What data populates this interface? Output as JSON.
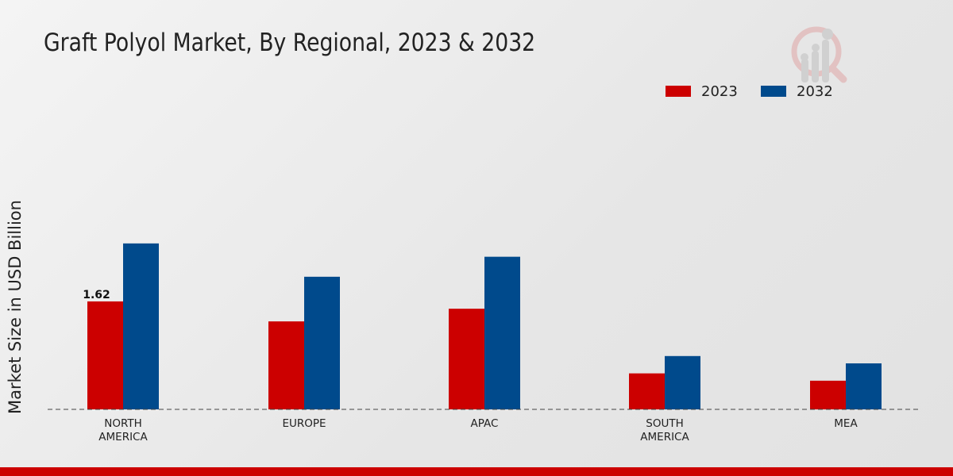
{
  "chart_data": {
    "type": "bar",
    "title": "Graft Polyol Market, By Regional, 2023 & 2032",
    "xlabel": "",
    "ylabel": "Market Size in USD Billion",
    "categories": [
      "NORTH\nAMERICA",
      "EUROPE",
      "APAC",
      "SOUTH\nAMERICA",
      "MEA"
    ],
    "series": [
      {
        "name": "2023",
        "color": "#cc0000",
        "values": [
          1.62,
          1.32,
          1.51,
          0.54,
          0.43
        ]
      },
      {
        "name": "2032",
        "color": "#004a8c",
        "values": [
          2.49,
          1.99,
          2.29,
          0.8,
          0.69
        ]
      }
    ],
    "data_labels": [
      {
        "series": 0,
        "index": 0,
        "text": "1.62"
      }
    ],
    "ylim": [
      0,
      3.2
    ],
    "grid": false,
    "legend": "top-right"
  }
}
